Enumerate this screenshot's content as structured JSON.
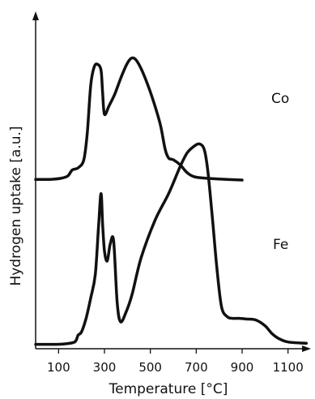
{
  "chart_data": {
    "type": "line",
    "xlabel": "Temperature [°C]",
    "ylabel": "Hydrogen uptake [a.u.]",
    "xlim": [
      0,
      1200
    ],
    "ylim": [
      0,
      1
    ],
    "xticks": [
      100,
      300,
      500,
      700,
      900,
      1100
    ],
    "grid": false,
    "legend": "none",
    "series": [
      {
        "name": "Co",
        "x": [
          0,
          60,
          110,
          140,
          160,
          185,
          210,
          225,
          240,
          255,
          270,
          285,
          292,
          300,
          320,
          345,
          370,
          395,
          415,
          435,
          460,
          490,
          520,
          545,
          565,
          580,
          600,
          630,
          660,
          690,
          730,
          800,
          900
        ],
        "y": [
          0.502,
          0.502,
          0.505,
          0.512,
          0.53,
          0.536,
          0.56,
          0.64,
          0.78,
          0.835,
          0.843,
          0.825,
          0.76,
          0.695,
          0.72,
          0.755,
          0.8,
          0.84,
          0.86,
          0.858,
          0.83,
          0.78,
          0.72,
          0.66,
          0.59,
          0.565,
          0.56,
          0.545,
          0.522,
          0.51,
          0.506,
          0.503,
          0.5
        ]
      },
      {
        "name": "Fe",
        "x": [
          0,
          60,
          120,
          170,
          185,
          200,
          220,
          240,
          260,
          275,
          285,
          292,
          300,
          312,
          325,
          340,
          355,
          370,
          395,
          420,
          460,
          520,
          580,
          630,
          660,
          690,
          715,
          735,
          750,
          770,
          790,
          810,
          835,
          860,
          890,
          920,
          960,
          1000,
          1030,
          1060,
          1100,
          1180
        ],
        "y": [
          0.013,
          0.013,
          0.014,
          0.02,
          0.04,
          0.05,
          0.09,
          0.15,
          0.22,
          0.37,
          0.46,
          0.37,
          0.29,
          0.26,
          0.31,
          0.32,
          0.14,
          0.08,
          0.11,
          0.16,
          0.27,
          0.38,
          0.46,
          0.54,
          0.58,
          0.6,
          0.607,
          0.59,
          0.53,
          0.39,
          0.24,
          0.125,
          0.095,
          0.09,
          0.09,
          0.088,
          0.085,
          0.068,
          0.045,
          0.03,
          0.02,
          0.016
        ]
      }
    ],
    "series_labels": [
      "Co",
      "Fe"
    ]
  }
}
